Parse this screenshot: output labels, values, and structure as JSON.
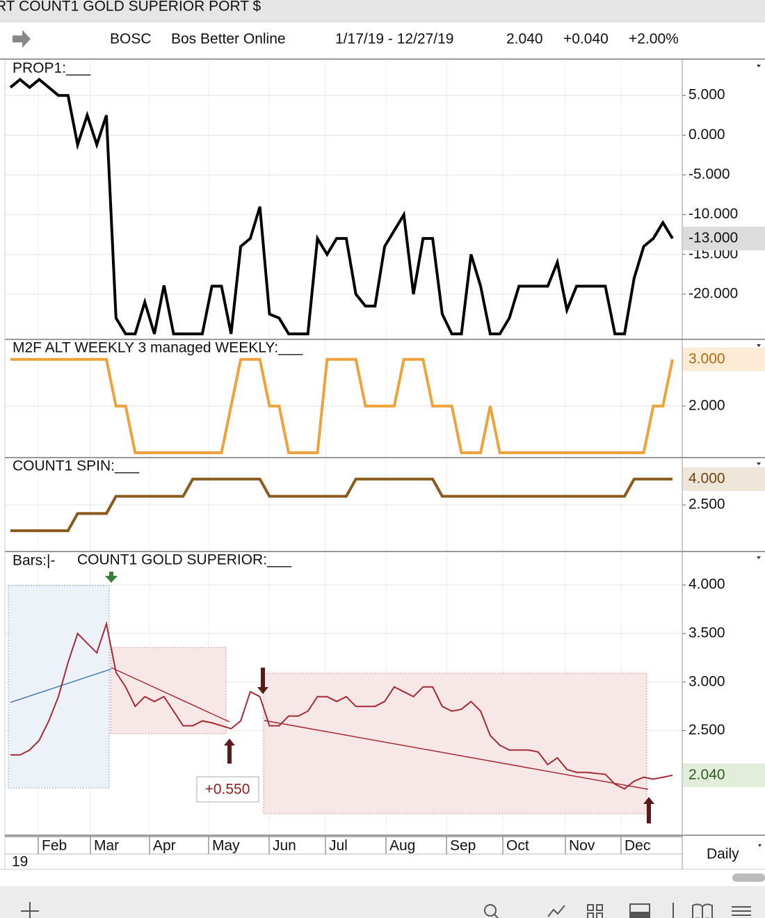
{
  "window_title": "RT COUNT1 GOLD SUPERIOR PORT $",
  "quote": {
    "symbol": "BOSC",
    "name": "Bos Better Online",
    "range": "1/17/19 - 12/27/19",
    "price": "2.040",
    "change": "+0.040",
    "percent": "+2.00%"
  },
  "chart_data": [
    {
      "type": "line",
      "title": "PROP1:___",
      "color": "#000000",
      "values": [
        6,
        7,
        6,
        7,
        6,
        5,
        5,
        -1.2,
        2.5,
        -1.2,
        2.5,
        -23,
        -25,
        -25,
        -21,
        -25,
        -18.9,
        -25,
        -25,
        -25,
        -25,
        -19,
        -19,
        -25,
        -14,
        -13,
        -9,
        -22.5,
        -23,
        -25,
        -25,
        -25,
        -13,
        -15,
        -13,
        -13,
        -20,
        -21.5,
        -21.5,
        -14,
        -12,
        -10,
        -20,
        -13,
        -13,
        -22.5,
        -25,
        -25,
        -15,
        -19,
        -25,
        -25,
        -23,
        -19,
        -19,
        -19,
        -19,
        -16,
        -22,
        -19,
        -19,
        -19,
        -19,
        -25,
        -25,
        -18,
        -14,
        -13,
        -11,
        -13
      ],
      "ylim": [
        -25.6,
        9.3
      ],
      "yticks": [
        {
          "value": 5,
          "label": "5.000"
        },
        {
          "value": 0,
          "label": "0.000"
        },
        {
          "value": -5,
          "label": "-5.000"
        },
        {
          "value": -10,
          "label": "-10.000"
        },
        {
          "value": -15,
          "label": "-15.000"
        },
        {
          "value": -20,
          "label": "-20.000"
        }
      ],
      "last": {
        "value": -13,
        "label": "-13.000"
      }
    },
    {
      "type": "line",
      "title": "M2F ALT WEEKLY 3 managed WEEKLY:___",
      "color": "#f0a23a",
      "values": [
        3,
        3,
        3,
        3,
        3,
        3,
        3,
        3,
        3,
        3,
        3,
        2,
        2,
        1,
        1,
        1,
        1,
        1,
        1,
        1,
        1,
        1,
        1,
        2,
        3,
        3,
        3,
        2,
        2,
        1,
        1,
        1,
        1,
        3,
        3,
        3,
        3,
        2,
        2,
        2,
        2,
        3,
        3,
        3,
        2,
        2,
        2,
        1,
        1,
        1,
        2,
        1,
        1,
        1,
        1,
        1,
        1,
        1,
        1,
        1,
        1,
        1,
        1,
        1,
        1,
        1,
        1,
        2,
        2,
        3
      ],
      "ylim": [
        0.91,
        3.4
      ],
      "yticks": [
        {
          "value": 2,
          "label": "2.000"
        }
      ],
      "last": {
        "value": 3,
        "label": "3.000"
      }
    },
    {
      "type": "line",
      "title": "COUNT1 SPIN:___",
      "color": "#8b5a1e",
      "values": [
        1,
        1,
        1,
        1,
        1,
        1,
        1,
        2,
        2,
        2,
        2,
        3,
        3,
        3,
        3,
        3,
        3,
        3,
        3,
        4,
        4,
        4,
        4,
        4,
        4,
        4,
        4,
        3,
        3,
        3,
        3,
        3,
        3,
        3,
        3,
        3,
        4,
        4,
        4,
        4,
        4,
        4,
        4,
        4,
        4,
        3,
        3,
        3,
        3,
        3,
        3,
        3,
        3,
        3,
        3,
        3,
        3,
        3,
        3,
        3,
        3,
        3,
        3,
        3,
        3,
        4,
        4,
        4,
        4,
        4
      ],
      "ylim": [
        -0.17,
        5.17
      ],
      "yticks": [
        {
          "value": 2.5,
          "label": "2.500"
        }
      ],
      "last": {
        "value": 4,
        "label": "4.000"
      }
    },
    {
      "type": "line",
      "title": "COUNT1 GOLD SUPERIOR:___",
      "bars_label": "Bars:|-",
      "color": "#a42a35",
      "values": [
        2.25,
        2.25,
        2.3,
        2.4,
        2.6,
        2.85,
        3.2,
        3.5,
        3.4,
        3.3,
        3.6,
        3.1,
        2.95,
        2.75,
        2.85,
        2.8,
        2.85,
        2.7,
        2.55,
        2.55,
        2.6,
        2.58,
        2.55,
        2.52,
        2.6,
        2.9,
        2.85,
        2.55,
        2.55,
        2.65,
        2.65,
        2.7,
        2.85,
        2.85,
        2.8,
        2.85,
        2.75,
        2.75,
        2.75,
        2.8,
        2.95,
        2.9,
        2.85,
        2.95,
        2.95,
        2.75,
        2.7,
        2.72,
        2.8,
        2.7,
        2.45,
        2.35,
        2.3,
        2.3,
        2.3,
        2.28,
        2.15,
        2.22,
        2.1,
        2.07,
        2.07,
        2.06,
        2.05,
        1.95,
        1.9,
        1.98,
        2.02,
        2.0,
        2.02,
        2.04
      ],
      "ylim": [
        1.43,
        4.33
      ],
      "yticks": [
        {
          "value": 4,
          "label": "4.000"
        },
        {
          "value": 3.5,
          "label": "3.500"
        },
        {
          "value": 3,
          "label": "3.000"
        },
        {
          "value": 2.5,
          "label": "2.500"
        }
      ],
      "last": {
        "value": 2.04,
        "label": "2.040"
      },
      "annotation": "+0.550"
    }
  ],
  "x_axis": {
    "months": [
      "Feb",
      "Mar",
      "Apr",
      "May",
      "Jun",
      "Jul",
      "Aug",
      "Sep",
      "Oct",
      "Nov",
      "Dec"
    ],
    "year": "19"
  },
  "period": "Daily"
}
